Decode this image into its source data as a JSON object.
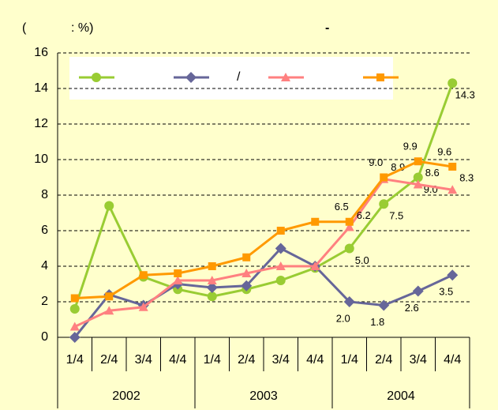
{
  "chart_data": {
    "type": "line",
    "annotations": [
      "(",
      ": %)",
      "-"
    ],
    "categories": [
      "1/4",
      "2/4",
      "3/4",
      "4/4",
      "1/4",
      "2/4",
      "3/4",
      "4/4",
      "1/4",
      "2/4",
      "3/4",
      "4/4"
    ],
    "year_labels": [
      "2002",
      "2003",
      "2004"
    ],
    "ylim": [
      0,
      16
    ],
    "yticks": [
      0,
      2,
      4,
      6,
      8,
      10,
      12,
      14,
      16
    ],
    "grid": true,
    "series": [
      {
        "color": "#99cc33",
        "marker": "circle",
        "values": [
          1.6,
          7.4,
          3.4,
          2.7,
          2.3,
          2.7,
          3.2,
          3.9,
          5.0,
          7.5,
          9.0,
          14.3
        ],
        "value_labels": [
          null,
          null,
          null,
          null,
          null,
          null,
          null,
          null,
          "5.0",
          "7.5",
          "9.0",
          "14.3"
        ]
      },
      {
        "name": "/",
        "color": "#666699",
        "marker": "diamond",
        "values": [
          0,
          2.4,
          1.8,
          3.0,
          2.8,
          2.9,
          5.0,
          4.0,
          2.0,
          1.8,
          2.6,
          3.5
        ],
        "value_labels": [
          null,
          null,
          null,
          null,
          null,
          null,
          null,
          null,
          "2.0",
          "1.8",
          "2.6",
          "3.5"
        ]
      },
      {
        "color": "#ff8080",
        "marker": "triangle",
        "values": [
          0.6,
          1.5,
          1.7,
          3.2,
          3.2,
          3.6,
          4.0,
          4.0,
          6.2,
          8.9,
          8.6,
          8.3
        ],
        "value_labels": [
          null,
          null,
          null,
          null,
          null,
          null,
          null,
          null,
          "6.2",
          "8.9",
          "8.6",
          "8.3"
        ]
      },
      {
        "color": "#ff9900",
        "marker": "square",
        "values": [
          2.2,
          2.3,
          3.5,
          3.6,
          4.0,
          4.5,
          6.0,
          6.5,
          6.5,
          9.0,
          9.9,
          9.6
        ],
        "value_labels": [
          null,
          null,
          null,
          null,
          null,
          null,
          null,
          null,
          "6.5",
          "9.0",
          "9.9",
          "9.6"
        ]
      }
    ]
  }
}
